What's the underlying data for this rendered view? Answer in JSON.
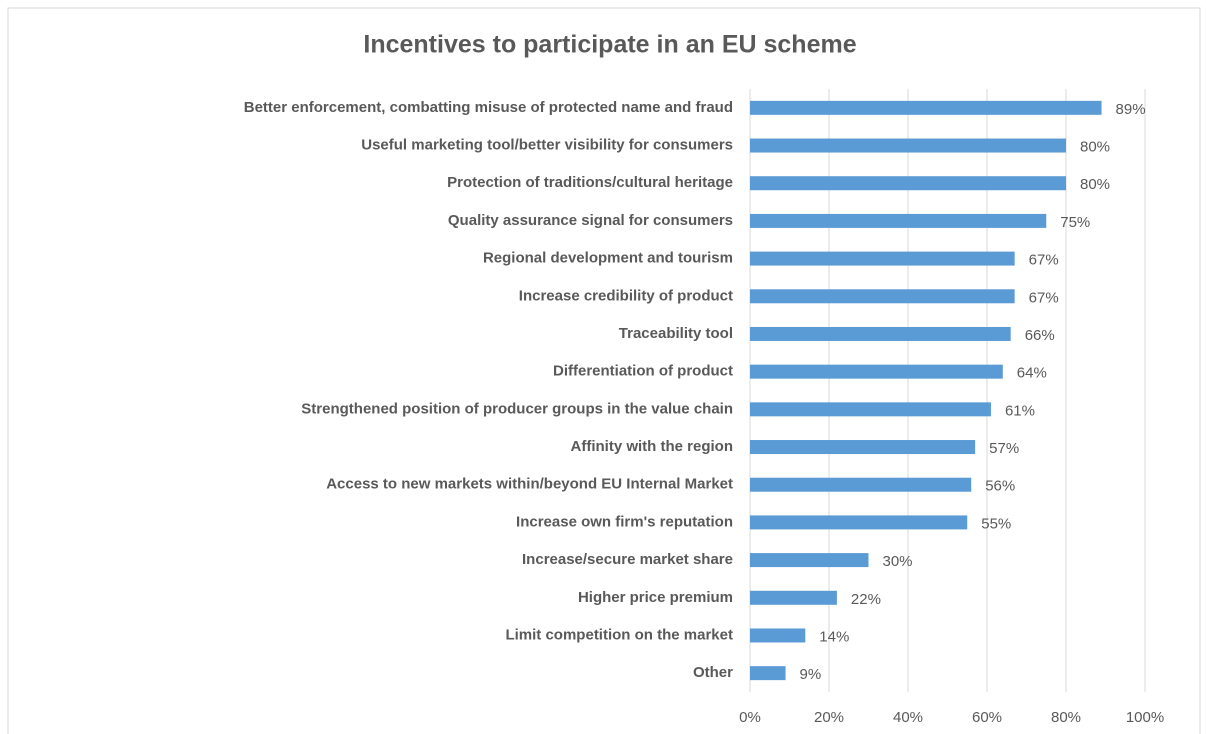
{
  "chart_data": {
    "type": "hbar",
    "title": "Incentives to participate in an EU scheme",
    "categories": [
      "Better enforcement, combatting misuse of protected name and fraud",
      "Useful marketing tool/better visibility for consumers",
      "Protection of traditions/cultural heritage",
      "Quality assurance signal for consumers",
      "Regional development and tourism",
      "Increase credibility of product",
      "Traceability tool",
      "Differentiation of product",
      "Strengthened position of producer groups in the value chain",
      "Affinity with the region",
      "Access to new markets within/beyond EU Internal Market",
      "Increase own firm's reputation",
      "Increase/secure market share",
      "Higher price premium",
      "Limit competition on the market",
      "Other"
    ],
    "values": [
      89,
      80,
      80,
      75,
      67,
      67,
      66,
      64,
      61,
      57,
      56,
      55,
      30,
      22,
      14,
      9
    ],
    "value_labels": [
      "89%",
      "80%",
      "80%",
      "75%",
      "67%",
      "67%",
      "66%",
      "64%",
      "61%",
      "57%",
      "56%",
      "55%",
      "30%",
      "22%",
      "14%",
      "9%"
    ],
    "color": "#5b9bd5",
    "xlim": [
      0,
      100
    ],
    "xticks": [
      {
        "value": 0,
        "label": "0%"
      },
      {
        "value": 20,
        "label": "20%"
      },
      {
        "value": 40,
        "label": "40%"
      },
      {
        "value": 60,
        "label": "60%"
      },
      {
        "value": 80,
        "label": "80%"
      },
      {
        "value": 100,
        "label": "100%"
      }
    ],
    "grid": true
  }
}
